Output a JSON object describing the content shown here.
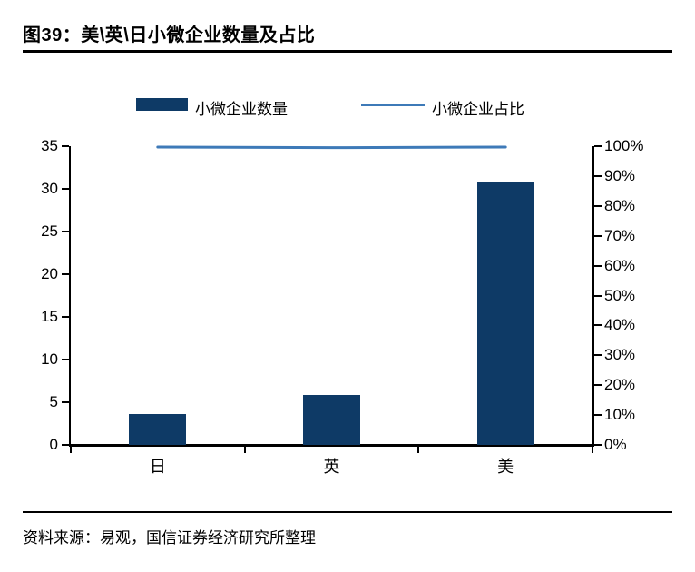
{
  "figure": {
    "title": "图39：美\\英\\日小微企业数量及占比",
    "source": "资料来源：易观，国信证券经济研究所整理"
  },
  "colors": {
    "bar": "#0e3a66",
    "line": "#3e7ab8",
    "axis": "#000000",
    "text": "#000000",
    "background": "#ffffff"
  },
  "chart_data": {
    "type": "bar",
    "subtype": "bar-and-line-dual-axis",
    "title": "图39：美\\英\\日小微企业数量及占比",
    "categories": [
      "日",
      "英",
      "美"
    ],
    "series": [
      {
        "name": "小微企业数量",
        "type": "bar",
        "axis": "left",
        "values": [
          3.6,
          5.9,
          30.7
        ]
      },
      {
        "name": "小微企业占比",
        "type": "line",
        "axis": "right",
        "values": [
          99.7,
          99.5,
          99.7
        ]
      }
    ],
    "left_axis": {
      "min": 0,
      "max": 35,
      "step": 5,
      "tick_labels": [
        "0",
        "5",
        "10",
        "15",
        "20",
        "25",
        "30",
        "35"
      ]
    },
    "right_axis": {
      "min": 0,
      "max": 100,
      "step": 10,
      "tick_labels": [
        "0%",
        "10%",
        "20%",
        "30%",
        "40%",
        "50%",
        "60%",
        "70%",
        "80%",
        "90%",
        "100%"
      ]
    },
    "legend": [
      {
        "label": "小微企业数量",
        "swatch": "bar"
      },
      {
        "label": "小微企业占比",
        "swatch": "line"
      }
    ],
    "legend_position": "top",
    "grid": false,
    "xlabel": "",
    "ylabel": ""
  }
}
